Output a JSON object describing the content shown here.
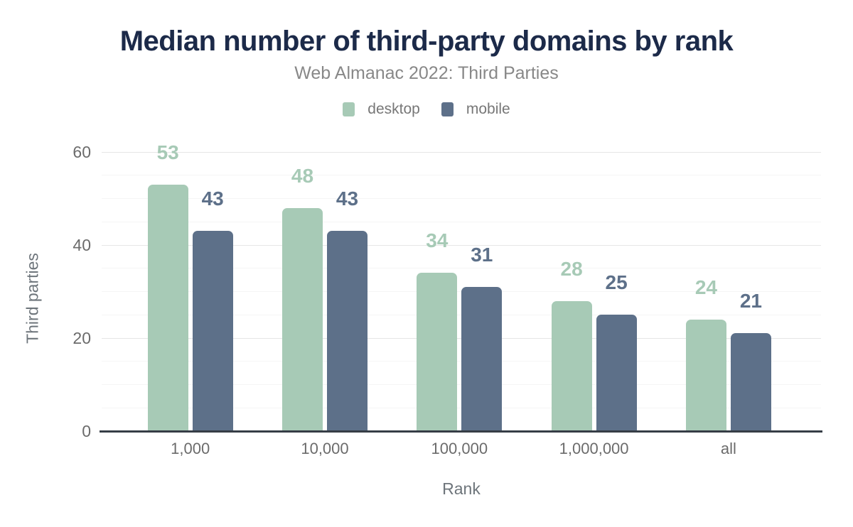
{
  "chart_data": {
    "type": "bar",
    "title": "Median number of third-party domains by rank",
    "subtitle": "Web Almanac 2022: Third Parties",
    "xlabel": "Rank",
    "ylabel": "Third parties",
    "categories": [
      "1,000",
      "10,000",
      "100,000",
      "1,000,000",
      "all"
    ],
    "series": [
      {
        "name": "desktop",
        "color": "#a7cab6",
        "values": [
          53,
          48,
          34,
          28,
          24
        ]
      },
      {
        "name": "mobile",
        "color": "#5d7089",
        "values": [
          43,
          43,
          31,
          25,
          21
        ]
      }
    ],
    "ylim": [
      0,
      65
    ],
    "y_ticks": [
      0,
      20,
      40,
      60
    ],
    "y_minor_step": 5,
    "grid": true,
    "legend_position": "top",
    "value_labels": true,
    "colors": {
      "title": "#1c2a49",
      "subtitle": "#888888",
      "axis_text": "#6b6b6b",
      "axis_line": "#363d46",
      "major_grid": "#e6e6e6",
      "minor_grid": "#f5f5f5"
    }
  }
}
